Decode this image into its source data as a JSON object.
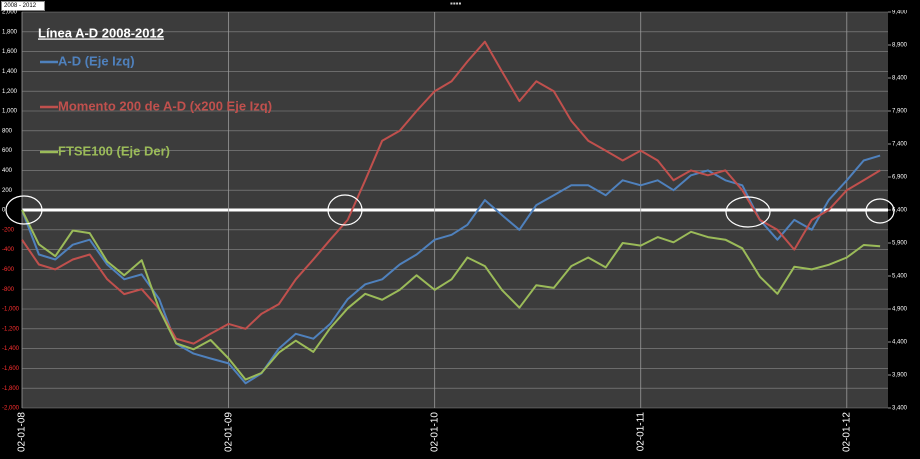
{
  "toolbar": {
    "range": "2008 - 2012"
  },
  "chart_data": {
    "type": "line",
    "title": "Línea A-D 2008-2012",
    "legend": "top-left",
    "grid": true,
    "x": [
      "2008-01-02",
      "2008-02-01",
      "2008-03-01",
      "2008-04-01",
      "2008-05-01",
      "2008-06-01",
      "2008-07-01",
      "2008-08-01",
      "2008-09-01",
      "2008-10-01",
      "2008-11-01",
      "2008-12-01",
      "2009-01-02",
      "2009-02-01",
      "2009-03-01",
      "2009-04-01",
      "2009-05-01",
      "2009-06-01",
      "2009-07-01",
      "2009-08-01",
      "2009-09-01",
      "2009-10-01",
      "2009-11-01",
      "2009-12-01",
      "2010-01-02",
      "2010-02-01",
      "2010-03-01",
      "2010-04-01",
      "2010-05-01",
      "2010-06-01",
      "2010-07-01",
      "2010-08-01",
      "2010-09-01",
      "2010-10-01",
      "2010-11-01",
      "2010-12-01",
      "2011-01-02",
      "2011-02-01",
      "2011-03-01",
      "2011-04-01",
      "2011-05-01",
      "2011-06-01",
      "2011-07-01",
      "2011-08-01",
      "2011-09-01",
      "2011-10-01",
      "2011-11-01",
      "2011-12-01",
      "2012-01-02",
      "2012-02-01",
      "2012-03-01"
    ],
    "xlim": [
      "2008-01-02",
      "2012-03-15"
    ],
    "xticks": [
      {
        "value": "2008-01-02",
        "label": "02-01-08"
      },
      {
        "value": "2009-01-02",
        "label": "02-01-09"
      },
      {
        "value": "2010-01-02",
        "label": "02-01-10"
      },
      {
        "value": "2011-01-02",
        "label": "02-01-11"
      },
      {
        "value": "2012-01-02",
        "label": "02-01-12"
      }
    ],
    "ylim": [
      -2000,
      2000
    ],
    "yticks": [
      {
        "value": -2000,
        "label": "-2,000"
      },
      {
        "value": -1800,
        "label": "-1,800"
      },
      {
        "value": -1600,
        "label": "-1,600"
      },
      {
        "value": -1400,
        "label": "-1,400"
      },
      {
        "value": -1200,
        "label": "-1,200"
      },
      {
        "value": -1000,
        "label": "-1,000"
      },
      -800,
      -600,
      -400,
      -200,
      0,
      200,
      400,
      600,
      800,
      {
        "value": 1000,
        "label": "1,000"
      },
      {
        "value": 1200,
        "label": "1,200"
      },
      {
        "value": 1400,
        "label": "1,400"
      },
      {
        "value": 1600,
        "label": "1,600"
      },
      {
        "value": 1800,
        "label": "1,800"
      },
      {
        "value": 2000,
        "label": "2,000"
      }
    ],
    "y2lim": [
      3400,
      9400
    ],
    "y2ticks": [
      {
        "value": 3400,
        "label": "3,400"
      },
      {
        "value": 3900,
        "label": "3,900"
      },
      {
        "value": 4400,
        "label": "4,400"
      },
      {
        "value": 4900,
        "label": "4,900"
      },
      {
        "value": 5400,
        "label": "5,400"
      },
      {
        "value": 5900,
        "label": "5,900"
      },
      {
        "value": 6400,
        "label": "6,400"
      },
      {
        "value": 6900,
        "label": "6,900"
      },
      {
        "value": 7400,
        "label": "7,400"
      },
      {
        "value": 7900,
        "label": "7,900"
      },
      {
        "value": 8400,
        "label": "8,400"
      },
      {
        "value": 8900,
        "label": "8,900"
      },
      {
        "value": 9400,
        "label": "9,400"
      }
    ],
    "series": [
      {
        "name": "A-D (Eje Izq)",
        "color": "#4f81bd",
        "values": [
          0,
          -450,
          -500,
          -350,
          -300,
          -550,
          -700,
          -650,
          -900,
          -1350,
          -1450,
          -1500,
          -1550,
          -1750,
          -1650,
          -1400,
          -1250,
          -1300,
          -1150,
          -900,
          -750,
          -700,
          -550,
          -450,
          -300,
          -250,
          -150,
          100,
          -50,
          -200,
          50,
          150,
          250,
          250,
          150,
          300,
          250,
          300,
          200,
          350,
          400,
          300,
          250,
          -100,
          -300,
          -100,
          -200,
          100,
          300,
          500,
          550
        ]
      },
      {
        "name": "Momento 200 de A-D (x200 Eje Izq)",
        "color": "#c0504d",
        "values": [
          -300,
          -550,
          -600,
          -500,
          -450,
          -700,
          -850,
          -800,
          -1000,
          -1300,
          -1350,
          -1250,
          -1150,
          -1200,
          -1050,
          -950,
          -700,
          -500,
          -300,
          -100,
          300,
          700,
          800,
          1000,
          1200,
          1300,
          1500,
          1700,
          1400,
          1100,
          1300,
          1200,
          900,
          700,
          600,
          500,
          600,
          500,
          300,
          400,
          350,
          400,
          200,
          -100,
          -200,
          -400,
          -100,
          0,
          200,
          300,
          400
        ]
      },
      {
        "name": "FTSE100 (Eje Der)",
        "color": "#9bbb59",
        "axis": "y2",
        "values": [
          6400,
          5880,
          5700,
          6090,
          6050,
          5620,
          5410,
          5640,
          4900,
          4380,
          4290,
          4430,
          4150,
          3830,
          3930,
          4240,
          4420,
          4250,
          4610,
          4910,
          5130,
          5040,
          5190,
          5410,
          5190,
          5350,
          5680,
          5550,
          5190,
          4920,
          5260,
          5220,
          5550,
          5680,
          5530,
          5900,
          5860,
          5990,
          5910,
          6070,
          5990,
          5950,
          5820,
          5390,
          5130,
          5540,
          5500,
          5570,
          5680,
          5870,
          5850
        ]
      }
    ]
  }
}
